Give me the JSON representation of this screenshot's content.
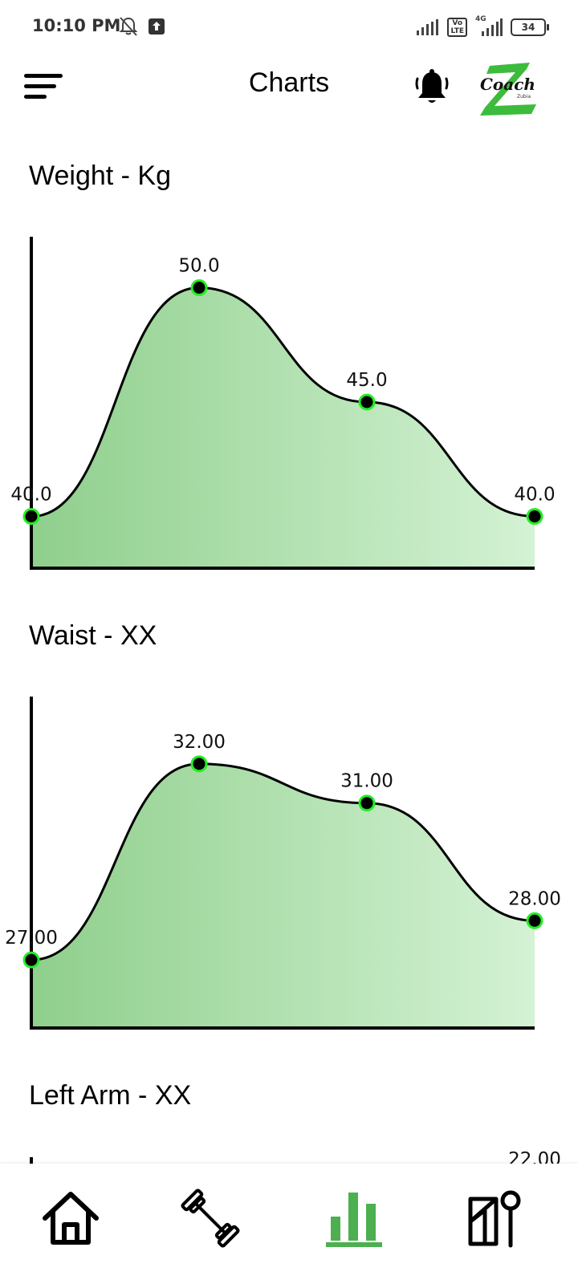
{
  "status_bar": {
    "time": "10:10 PM",
    "battery": "34",
    "network_label": "4G",
    "volte_label": "Vo\nLTE"
  },
  "header": {
    "title": "Charts",
    "logo_text": "Coach",
    "logo_subtext": "Zubia"
  },
  "charts": [
    {
      "title": "Weight - Kg",
      "labels": [
        "40.0",
        "50.0",
        "45.0",
        "40.0"
      ]
    },
    {
      "title": "Waist - XX",
      "labels": [
        "27.00",
        "32.00",
        "31.00",
        "28.00"
      ]
    },
    {
      "title": "Left Arm - XX",
      "labels": [
        "22.00"
      ]
    }
  ],
  "chart_data": [
    {
      "type": "area",
      "title": "Weight - Kg",
      "x": [
        1,
        2,
        3,
        4
      ],
      "values": [
        40.0,
        50.0,
        45.0,
        40.0
      ],
      "ylim": [
        39,
        51
      ]
    },
    {
      "type": "area",
      "title": "Waist - XX",
      "x": [
        1,
        2,
        3,
        4
      ],
      "values": [
        27.0,
        32.0,
        31.0,
        28.0
      ],
      "ylim": [
        26,
        33
      ]
    }
  ],
  "colors": {
    "fill_start": "#8fcf8c",
    "fill_end": "#d4f2d4",
    "point_ring": "#22ee22",
    "accent": "#4caf50"
  },
  "nav": {
    "items": [
      "home-icon",
      "dumbbell-icon",
      "bar-chart-icon",
      "meal-icon"
    ],
    "active": "bar-chart-icon"
  }
}
